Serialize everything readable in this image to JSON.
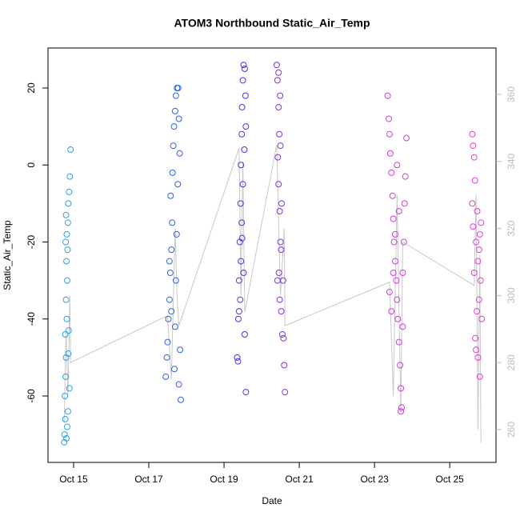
{
  "chart_data": {
    "type": "scatter",
    "title": "ATOM3 Northbound Static_Air_Temp",
    "x_label": "Date",
    "y_label": "Static_Air_Temp",
    "xlim": [
      14.32,
      26.23
    ],
    "ylim": [
      -77.25,
      30.39
    ],
    "y2lim": [
      250.21,
      373.84
    ],
    "xticks": [
      {
        "value": 15,
        "label": "Oct 15"
      },
      {
        "value": 17,
        "label": "Oct 17"
      },
      {
        "value": 19,
        "label": "Oct 19"
      },
      {
        "value": 21,
        "label": "Oct 21"
      },
      {
        "value": 23,
        "label": "Oct 23"
      },
      {
        "value": 25,
        "label": "Oct 25"
      }
    ],
    "yticks": [
      -60,
      -40,
      -20,
      0,
      20
    ],
    "y2ticks": [
      260,
      280,
      300,
      320,
      340,
      360
    ],
    "y2color": "#bbbbbb",
    "series": [
      {
        "color": "#2aa3e6",
        "x": [
          14.75,
          14.76,
          14.78,
          14.77,
          14.79,
          14.8,
          14.78,
          14.82,
          14.8,
          14.83,
          14.81,
          14.84,
          14.82,
          14.85,
          14.86,
          14.88,
          14.9,
          14.92,
          14.87,
          14.86,
          14.89,
          14.85,
          14.83,
          14.81,
          14.79,
          14.8
        ],
        "values": [
          -72,
          -70,
          -66,
          -60,
          -55,
          -50,
          -44,
          -40,
          -35,
          -30,
          -25,
          -22,
          -18,
          -15,
          -10,
          -7,
          -3,
          4,
          -43,
          -49,
          -58,
          -64,
          -68,
          -71,
          -20,
          -13
        ]
      },
      {
        "color": "#2f62e8",
        "x": [
          17.45,
          17.48,
          17.5,
          17.52,
          17.55,
          17.57,
          17.6,
          17.62,
          17.58,
          17.63,
          17.65,
          17.67,
          17.7,
          17.72,
          17.75,
          17.78,
          17.8,
          17.82,
          17.77,
          17.74,
          17.72,
          17.7,
          17.68,
          17.8,
          17.85,
          17.83,
          17.6,
          17.55
        ],
        "values": [
          -55,
          -50,
          -46,
          -40,
          -35,
          -28,
          -22,
          -15,
          -8,
          -2,
          5,
          10,
          14,
          18,
          20,
          20,
          12,
          3,
          -5,
          -18,
          -30,
          -42,
          -53,
          -57,
          -61,
          -48,
          -38,
          -25
        ]
      },
      {
        "color": "#5530e8",
        "x": [
          19.35,
          19.38,
          19.4,
          19.42,
          19.44,
          19.45,
          19.47,
          19.48,
          19.5,
          19.52,
          19.55,
          19.57,
          19.58,
          19.54,
          19.5,
          19.47,
          19.45,
          19.43,
          19.4,
          19.55,
          19.58,
          19.37,
          19.52,
          19.48
        ],
        "values": [
          -50,
          -40,
          -30,
          -20,
          -10,
          0,
          8,
          15,
          22,
          26,
          25,
          18,
          10,
          4,
          -5,
          -15,
          -25,
          -35,
          -38,
          -44,
          -59,
          -51,
          -28,
          -19
        ]
      },
      {
        "color": "#8a2ee2",
        "x": [
          20.4,
          20.42,
          20.45,
          20.47,
          20.43,
          20.45,
          20.48,
          20.5,
          20.46,
          20.42,
          20.48,
          20.52,
          20.55,
          20.58,
          20.6,
          20.62,
          20.57,
          20.53,
          20.5,
          20.45,
          20.49,
          20.52
        ],
        "values": [
          26,
          22,
          15,
          8,
          2,
          -5,
          -12,
          -20,
          -28,
          -30,
          -35,
          -38,
          -44,
          -45,
          -52,
          -59,
          -30,
          -10,
          5,
          24,
          18,
          -22
        ]
      },
      {
        "color": "#d43ae0",
        "x": [
          23.35,
          23.38,
          23.4,
          23.42,
          23.45,
          23.48,
          23.5,
          23.52,
          23.55,
          23.58,
          23.6,
          23.62,
          23.65,
          23.68,
          23.7,
          23.72,
          23.7,
          23.75,
          23.78,
          23.8,
          23.82,
          23.85,
          23.4,
          23.45,
          23.5,
          23.55,
          23.6,
          23.65,
          23.75
        ],
        "values": [
          18,
          12,
          8,
          3,
          -2,
          -8,
          -14,
          -20,
          -25,
          -30,
          -35,
          -40,
          -46,
          -52,
          -58,
          -63,
          -64,
          -28,
          -20,
          -10,
          -3,
          7,
          -33,
          -38,
          -28,
          -18,
          0,
          -12,
          -42
        ]
      },
      {
        "color": "#f03ad4",
        "x": [
          25.6,
          25.62,
          25.65,
          25.67,
          25.6,
          25.62,
          25.7,
          25.75,
          25.8,
          25.82,
          25.78,
          25.72,
          25.68,
          25.7,
          25.75,
          25.8,
          25.85,
          25.78,
          25.65,
          25.73,
          25.83
        ],
        "values": [
          8,
          5,
          2,
          -4,
          -10,
          -16,
          -20,
          -25,
          -18,
          -30,
          -35,
          -38,
          -45,
          -48,
          -50,
          -55,
          -40,
          -22,
          -28,
          -12,
          -15
        ]
      },
      {
        "type": "line",
        "axis": "y2",
        "color": "#c8c8c8",
        "x": [
          14.75,
          14.8,
          14.85,
          14.9,
          14.92,
          17.5,
          17.6,
          17.7,
          17.75,
          17.8,
          19.4,
          19.45,
          19.5,
          19.55,
          20.4,
          20.5,
          20.6,
          20.62,
          23.4,
          23.5,
          23.6,
          23.7,
          23.75,
          25.65,
          25.7,
          25.75,
          25.8,
          25.83
        ],
        "values": [
          262,
          290,
          270,
          300,
          280,
          294,
          275,
          320,
          300,
          291,
          344,
          300,
          340,
          295,
          345,
          300,
          320,
          291,
          304,
          270,
          330,
          265,
          316,
          303,
          330,
          260,
          312,
          256
        ]
      }
    ]
  }
}
